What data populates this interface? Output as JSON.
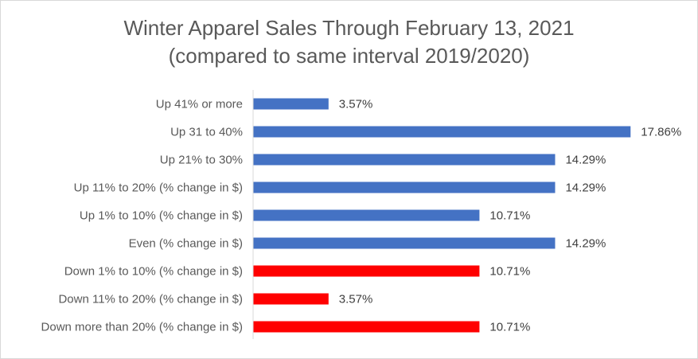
{
  "chart_data": {
    "type": "bar",
    "orientation": "horizontal",
    "title": "Winter Apparel Sales Through February 13, 2021",
    "subtitle": "(compared to same interval 2019/2020)",
    "xlabel": "",
    "ylabel": "",
    "xlim": [
      0,
      18
    ],
    "grid": false,
    "legend": "none",
    "categories": [
      "Up 41% or more",
      "Up 31 to 40%",
      "Up 21% to 30%",
      "Up 11% to 20% (% change in $)",
      "Up 1% to 10% (% change in $)",
      "Even (% change in $)",
      "Down 1% to 10% (% change in $)",
      "Down 11% to 20% (% change in $)",
      "Down more than 20% (% change in $)"
    ],
    "values": [
      3.57,
      17.86,
      14.29,
      14.29,
      10.71,
      14.29,
      10.71,
      3.57,
      10.71
    ],
    "data_labels": [
      "3.57%",
      "17.86%",
      "14.29%",
      "14.29%",
      "10.71%",
      "14.29%",
      "10.71%",
      "3.57%",
      "10.71%"
    ],
    "bar_colors": [
      "#4472c4",
      "#4472c4",
      "#4472c4",
      "#4472c4",
      "#4472c4",
      "#4472c4",
      "#ff0000",
      "#ff0000",
      "#ff0000"
    ],
    "axis_color": "#d9d9d9"
  }
}
